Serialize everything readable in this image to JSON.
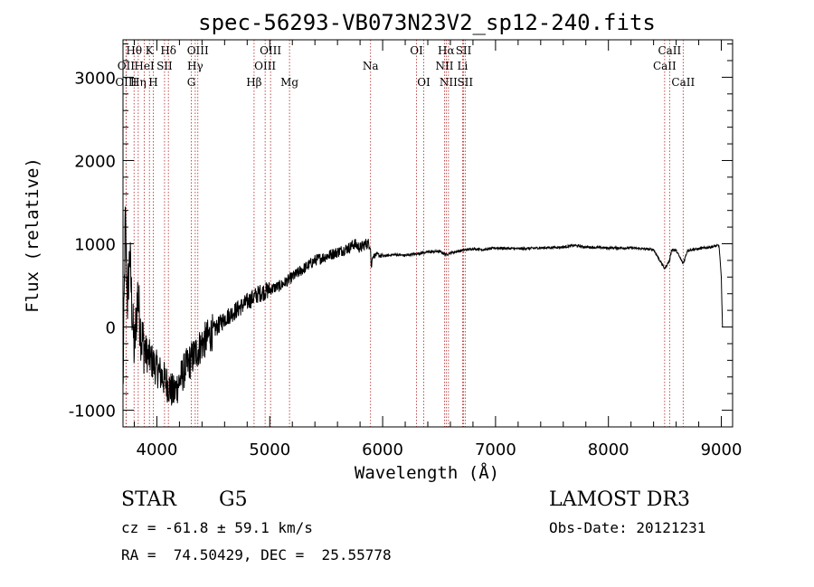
{
  "chart_data": {
    "type": "line",
    "title": "spec-56293-VB073N23V2_sp12-240.fits",
    "xlabel": "Wavelength (Å)",
    "ylabel": "Flux (relative)",
    "xlim": [
      3700,
      9100
    ],
    "ylim": [
      -1200,
      3450
    ],
    "xticks": [
      4000,
      5000,
      6000,
      7000,
      8000,
      9000
    ],
    "yticks": [
      -1000,
      0,
      1000,
      2000,
      3000
    ],
    "series": [
      {
        "name": "flux",
        "color": "#000000",
        "x": [
          3700,
          3720,
          3740,
          3760,
          3780,
          3800,
          3830,
          3860,
          3900,
          3950,
          4000,
          4050,
          4100,
          4150,
          4200,
          4250,
          4300,
          4350,
          4400,
          4500,
          4600,
          4700,
          4800,
          4900,
          5000,
          5100,
          5200,
          5300,
          5400,
          5500,
          5600,
          5700,
          5750,
          5800,
          5850,
          5890,
          5900,
          5910,
          5950,
          6000,
          6100,
          6200,
          6300,
          6400,
          6500,
          6563,
          6600,
          6700,
          6800,
          6900,
          7000,
          7200,
          7400,
          7600,
          7700,
          7800,
          8000,
          8200,
          8400,
          8498,
          8542,
          8560,
          8600,
          8662,
          8700,
          8800,
          8900,
          8980,
          9000,
          9010
        ],
        "y": [
          -800,
          1300,
          300,
          900,
          200,
          -300,
          400,
          -100,
          -300,
          -400,
          -500,
          -600,
          -700,
          -800,
          -650,
          -500,
          -400,
          -300,
          -200,
          -50,
          100,
          200,
          300,
          400,
          450,
          500,
          600,
          700,
          800,
          850,
          900,
          950,
          1000,
          950,
          1000,
          1000,
          700,
          850,
          870,
          850,
          870,
          860,
          880,
          900,
          910,
          870,
          890,
          920,
          940,
          930,
          950,
          940,
          950,
          960,
          980,
          960,
          950,
          950,
          930,
          700,
          800,
          930,
          920,
          760,
          920,
          940,
          960,
          980,
          600,
          0
        ]
      }
    ],
    "lines": [
      {
        "label": "Hθ",
        "wavelength": 3798,
        "row": 1
      },
      {
        "label": "OII",
        "wavelength": 3727,
        "row": 2
      },
      {
        "label": "OIII",
        "wavelength": 3727,
        "row": 3
      },
      {
        "label": "Hη",
        "wavelength": 3835,
        "row": 3
      },
      {
        "label": "HeI",
        "wavelength": 3889,
        "row": 2
      },
      {
        "label": "K",
        "wavelength": 3934,
        "row": 1
      },
      {
        "label": "H",
        "wavelength": 3968,
        "row": 3
      },
      {
        "label": "SII",
        "wavelength": 4068,
        "row": 2
      },
      {
        "label": "Hδ",
        "wavelength": 4102,
        "row": 1
      },
      {
        "label": "OIII",
        "wavelength": 4363,
        "row": 1
      },
      {
        "label": "Hγ",
        "wavelength": 4340,
        "row": 2
      },
      {
        "label": "G",
        "wavelength": 4305,
        "row": 3
      },
      {
        "label": "Hβ",
        "wavelength": 4861,
        "row": 3
      },
      {
        "label": "OIII",
        "wavelength": 5007,
        "row": 1
      },
      {
        "label": "OIII",
        "wavelength": 4959,
        "row": 2
      },
      {
        "label": "Mg",
        "wavelength": 5175,
        "row": 3
      },
      {
        "label": "Na",
        "wavelength": 5893,
        "row": 2
      },
      {
        "label": "OI",
        "wavelength": 6300,
        "row": 1
      },
      {
        "label": "OI",
        "wavelength": 6364,
        "row": 3
      },
      {
        "label": "Hα",
        "wavelength": 6563,
        "row": 1
      },
      {
        "label": "NII",
        "wavelength": 6548,
        "row": 2
      },
      {
        "label": "NII",
        "wavelength": 6583,
        "row": 3
      },
      {
        "label": "SII",
        "wavelength": 6717,
        "row": 1
      },
      {
        "label": "Li",
        "wavelength": 6708,
        "row": 2
      },
      {
        "label": "SII",
        "wavelength": 6731,
        "row": 3
      },
      {
        "label": "CaII",
        "wavelength": 8542,
        "row": 1
      },
      {
        "label": "CaII",
        "wavelength": 8498,
        "row": 2
      },
      {
        "label": "CaII",
        "wavelength": 8662,
        "row": 3
      }
    ],
    "line_color": "#b22222"
  },
  "info": {
    "object_class": "STAR",
    "subclass": "G5",
    "survey": "LAMOST DR3",
    "redshift": "cz = -61.8 ± 59.1 km/s",
    "obs_date": "Obs-Date: 20121231",
    "coords": "RA =  74.50429, DEC =  25.55778"
  }
}
